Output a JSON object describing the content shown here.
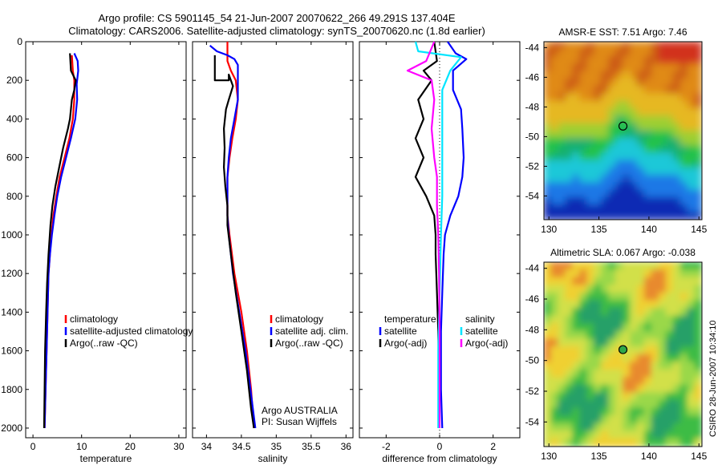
{
  "header": {
    "line1": "Argo profile: CS 5901145_54 21-Jun-2007 20070622_266 49.291S 137.404E",
    "line2": "Climatology: CARS2006. Satellite-adjusted climatology: synTS_20070620.nc (1.8d earlier)"
  },
  "side_stamp": "CSIRO 28-Jun-2007 10:34:10",
  "colors": {
    "climatology": "#ff0000",
    "satellite": "#0000ff",
    "argo": "#000000",
    "sal_satellite": "#00e5ff",
    "sal_argo": "#ff00ff"
  },
  "chart_data": [
    {
      "id": "temperature",
      "type": "line",
      "xlabel": "temperature",
      "xlim": [
        -1.5,
        31.5
      ],
      "ylim": [
        2050,
        0
      ],
      "xticks": [
        0,
        10,
        20,
        30
      ],
      "yticks": [
        0,
        200,
        400,
        600,
        800,
        1000,
        1200,
        1400,
        1600,
        1800,
        2000
      ],
      "legend": [
        "climatology",
        "satellite-adjusted climatology",
        "Argo(..raw -QC)"
      ],
      "series": [
        {
          "name": "climatology",
          "key": "climatology",
          "points": [
            [
              8,
              70
            ],
            [
              8.2,
              150
            ],
            [
              8.5,
              200
            ],
            [
              8.5,
              300
            ],
            [
              8.2,
              400
            ],
            [
              7.5,
              500
            ],
            [
              6.5,
              600
            ],
            [
              5.5,
              700
            ],
            [
              4.8,
              800
            ],
            [
              4.2,
              900
            ],
            [
              3.8,
              1000
            ],
            [
              3.5,
              1100
            ],
            [
              3.2,
              1200
            ],
            [
              3,
              1400
            ],
            [
              2.8,
              1600
            ],
            [
              2.6,
              1800
            ],
            [
              2.4,
              2000
            ]
          ]
        },
        {
          "name": "satellite-adjusted climatology",
          "key": "satellite",
          "points": [
            [
              8.5,
              60
            ],
            [
              9.2,
              100
            ],
            [
              9.3,
              150
            ],
            [
              9,
              220
            ],
            [
              9.1,
              300
            ],
            [
              8.7,
              400
            ],
            [
              7.8,
              500
            ],
            [
              6.8,
              600
            ],
            [
              5.8,
              700
            ],
            [
              5,
              800
            ],
            [
              4.4,
              900
            ],
            [
              3.9,
              1000
            ],
            [
              3.5,
              1100
            ],
            [
              3.2,
              1200
            ],
            [
              3,
              1400
            ],
            [
              2.8,
              1600
            ],
            [
              2.6,
              1800
            ],
            [
              2.4,
              2000
            ]
          ]
        },
        {
          "name": "Argo(..raw -QC)",
          "key": "argo",
          "points": [
            [
              7.6,
              60
            ],
            [
              7.8,
              150
            ],
            [
              8.8,
              200
            ],
            [
              8.5,
              250
            ],
            [
              8,
              300
            ],
            [
              7.6,
              400
            ],
            [
              7.2,
              450
            ],
            [
              6.2,
              550
            ],
            [
              5.4,
              650
            ],
            [
              4.6,
              750
            ],
            [
              4,
              850
            ],
            [
              3.6,
              950
            ],
            [
              3.2,
              1100
            ],
            [
              2.9,
              1250
            ],
            [
              2.7,
              1400
            ],
            [
              2.5,
              1600
            ],
            [
              2.4,
              1800
            ],
            [
              2.3,
              2000
            ]
          ]
        }
      ]
    },
    {
      "id": "salinity",
      "type": "line",
      "xlabel": "salinity",
      "xlim": [
        33.8,
        36.1
      ],
      "ylim": [
        2050,
        0
      ],
      "xticks": [
        34,
        34.5,
        35,
        35.5,
        36
      ],
      "xtick_labels": [
        "34",
        "34.5",
        "35",
        "35.5",
        "36"
      ],
      "legend": [
        "climatology",
        "satellite adj. clim.",
        "Argo(..raw -QC)"
      ],
      "annotations": [
        "Argo AUSTRALIA",
        "PI: Susan Wijffels"
      ],
      "series": [
        {
          "name": "climatology",
          "key": "climatology",
          "points": [
            [
              34.3,
              0
            ],
            [
              34.3,
              100
            ],
            [
              34.35,
              150
            ],
            [
              34.42,
              200
            ],
            [
              34.45,
              300
            ],
            [
              34.42,
              400
            ],
            [
              34.37,
              500
            ],
            [
              34.33,
              600
            ],
            [
              34.3,
              700
            ],
            [
              34.3,
              800
            ],
            [
              34.3,
              900
            ],
            [
              34.33,
              1000
            ],
            [
              34.4,
              1200
            ],
            [
              34.5,
              1400
            ],
            [
              34.58,
              1600
            ],
            [
              34.64,
              1800
            ],
            [
              34.68,
              2000
            ]
          ]
        },
        {
          "name": "satellite adj. clim.",
          "key": "satellite",
          "points": [
            [
              34.05,
              20
            ],
            [
              34.15,
              50
            ],
            [
              34.3,
              70
            ],
            [
              34.4,
              90
            ],
            [
              34.45,
              120
            ],
            [
              34.45,
              200
            ],
            [
              34.45,
              300
            ],
            [
              34.4,
              400
            ],
            [
              34.35,
              500
            ],
            [
              34.32,
              600
            ],
            [
              34.3,
              700
            ],
            [
              34.3,
              800
            ],
            [
              34.3,
              900
            ],
            [
              34.32,
              1000
            ],
            [
              34.38,
              1200
            ],
            [
              34.47,
              1400
            ],
            [
              34.56,
              1600
            ],
            [
              34.63,
              1800
            ],
            [
              34.7,
              2000
            ]
          ]
        },
        {
          "name": "Argo(..raw -QC)",
          "key": "argo",
          "points": [
            [
              34.12,
              70
            ],
            [
              34.12,
              200
            ],
            [
              34.32,
              200
            ],
            [
              34.32,
              170
            ],
            [
              34.38,
              230
            ],
            [
              34.32,
              300
            ],
            [
              34.28,
              350
            ],
            [
              34.25,
              450
            ],
            [
              34.26,
              550
            ],
            [
              34.25,
              650
            ],
            [
              34.27,
              750
            ],
            [
              34.3,
              850
            ],
            [
              34.3,
              950
            ],
            [
              34.35,
              1100
            ],
            [
              34.42,
              1300
            ],
            [
              34.5,
              1500
            ],
            [
              34.58,
              1700
            ],
            [
              34.64,
              1900
            ],
            [
              34.68,
              2000
            ]
          ]
        }
      ]
    },
    {
      "id": "difference",
      "type": "line",
      "xlabel": "difference from climatology",
      "xlim": [
        -3.0,
        3.0
      ],
      "ylim": [
        2050,
        0
      ],
      "xticks": [
        -2,
        0,
        2
      ],
      "legend_temperature": [
        "temperature",
        "satellite",
        "Argo(-adj)"
      ],
      "legend_salinity": [
        "salinity",
        "satellite",
        "Argo(-adj)"
      ],
      "series": [
        {
          "name": "temperature satellite",
          "key": "satellite",
          "points": [
            [
              0.3,
              0
            ],
            [
              0.6,
              60
            ],
            [
              1,
              90
            ],
            [
              0.5,
              150
            ],
            [
              0.5,
              250
            ],
            [
              0.8,
              350
            ],
            [
              0.85,
              450
            ],
            [
              0.9,
              600
            ],
            [
              0.85,
              700
            ],
            [
              0.7,
              800
            ],
            [
              0.4,
              900
            ],
            [
              0.2,
              1000
            ],
            [
              0.15,
              1100
            ],
            [
              0.1,
              1300
            ],
            [
              0.05,
              1500
            ],
            [
              0.05,
              1800
            ],
            [
              0.1,
              2000
            ]
          ]
        },
        {
          "name": "temperature Argo(-adj)",
          "key": "argo",
          "points": [
            [
              -0.2,
              0
            ],
            [
              -0.1,
              100
            ],
            [
              -0.6,
              150
            ],
            [
              -0.3,
              200
            ],
            [
              -0.8,
              300
            ],
            [
              -0.6,
              400
            ],
            [
              -0.9,
              500
            ],
            [
              -0.6,
              600
            ],
            [
              -0.9,
              700
            ],
            [
              -0.5,
              800
            ],
            [
              -0.2,
              900
            ],
            [
              -0.15,
              1000
            ],
            [
              -0.15,
              1100
            ],
            [
              -0.1,
              1300
            ],
            [
              -0.05,
              1500
            ],
            [
              -0.02,
              1800
            ],
            [
              -0.02,
              2000
            ]
          ]
        },
        {
          "name": "salinity satellite",
          "key": "sal_satellite",
          "points": [
            [
              -0.9,
              0
            ],
            [
              -0.8,
              50
            ],
            [
              0.8,
              80
            ],
            [
              0.4,
              150
            ],
            [
              0.1,
              250
            ],
            [
              0.1,
              400
            ],
            [
              0.1,
              600
            ],
            [
              0.1,
              800
            ],
            [
              0.05,
              1000
            ],
            [
              0,
              1300
            ],
            [
              -0.05,
              1600
            ],
            [
              -0.05,
              1800
            ],
            [
              -0.05,
              2000
            ]
          ]
        },
        {
          "name": "salinity Argo(-adj)",
          "key": "sal_argo",
          "points": [
            [
              -0.2,
              0
            ],
            [
              -0.5,
              100
            ],
            [
              -1.2,
              150
            ],
            [
              -0.3,
              200
            ],
            [
              -0.2,
              300
            ],
            [
              -0.3,
              450
            ],
            [
              -0.2,
              600
            ],
            [
              -0.1,
              700
            ],
            [
              -0.1,
              850
            ],
            [
              -0.05,
              1000
            ],
            [
              -0.02,
              1200
            ],
            [
              0,
              1500
            ],
            [
              0,
              1800
            ],
            [
              0,
              2000
            ]
          ]
        }
      ]
    },
    {
      "id": "sst_map",
      "type": "heatmap",
      "title": "AMSR-E SST: 7.51 Argo: 7.46",
      "xlim": [
        129.5,
        145.3
      ],
      "ylim": [
        -55.6,
        -43.6
      ],
      "xticks": [
        130,
        135,
        140,
        145
      ],
      "yticks": [
        -44,
        -46,
        -48,
        -50,
        -52,
        -54
      ],
      "marker": {
        "lon": 137.404,
        "lat": -49.291
      }
    },
    {
      "id": "sla_map",
      "type": "heatmap",
      "title": "Altimetric SLA: 0.067 Argo: -0.038",
      "xlim": [
        129.5,
        145.3
      ],
      "ylim": [
        -55.6,
        -43.6
      ],
      "xticks": [
        130,
        135,
        140,
        145
      ],
      "yticks": [
        -44,
        -46,
        -48,
        -50,
        -52,
        -54
      ],
      "marker": {
        "lon": 137.404,
        "lat": -49.291
      }
    }
  ]
}
